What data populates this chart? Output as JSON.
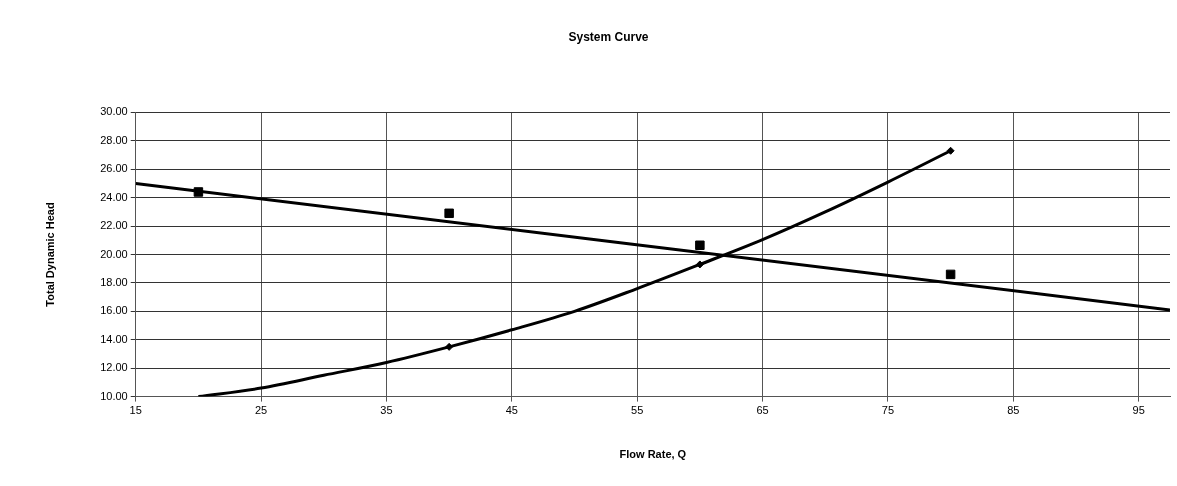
{
  "chart_data": {
    "type": "line",
    "title": "System Curve",
    "xlabel": "Flow Rate, Q",
    "ylabel": "Total Dynamic Head",
    "xlim": [
      15,
      97.5
    ],
    "xticks": [
      15,
      25,
      35,
      45,
      55,
      65,
      75,
      85,
      95
    ],
    "ylim": [
      10,
      30
    ],
    "yticks": [
      {
        "value": 10,
        "label": "10.00"
      },
      {
        "value": 12,
        "label": "12.00"
      },
      {
        "value": 14,
        "label": "14.00"
      },
      {
        "value": 16,
        "label": "16.00"
      },
      {
        "value": 18,
        "label": "18.00"
      },
      {
        "value": 20,
        "label": "20.00"
      },
      {
        "value": 22,
        "label": "22.00"
      },
      {
        "value": 24,
        "label": "24.00"
      },
      {
        "value": 26,
        "label": "26.00"
      },
      {
        "value": 28,
        "label": "28.00"
      },
      {
        "value": 30,
        "label": "30.00"
      }
    ],
    "grid": true,
    "legend": false,
    "series": [
      {
        "type": "scatter",
        "marker": "square",
        "color": "#000000",
        "x": [
          20,
          40,
          60,
          80
        ],
        "values": [
          24.4,
          22.9,
          20.65,
          18.6
        ]
      },
      {
        "marker": "none",
        "color": "#000000",
        "x": [
          15,
          97.5
        ],
        "values": [
          25,
          16.1
        ]
      },
      {
        "marker": "none",
        "color": "#000000",
        "x": [
          20,
          25,
          30,
          35,
          40,
          45,
          50,
          55,
          60,
          65,
          70,
          75,
          80
        ],
        "values": [
          10.0,
          10.6,
          11.5,
          12.4,
          13.5,
          14.7,
          16.0,
          17.6,
          19.3,
          21.05,
          23.0,
          25.1,
          27.3
        ]
      },
      {
        "type": "scatter",
        "marker": "diamond",
        "color": "#000000",
        "x": [
          40,
          60,
          80
        ],
        "values": [
          13.5,
          19.3,
          27.3
        ]
      }
    ]
  }
}
